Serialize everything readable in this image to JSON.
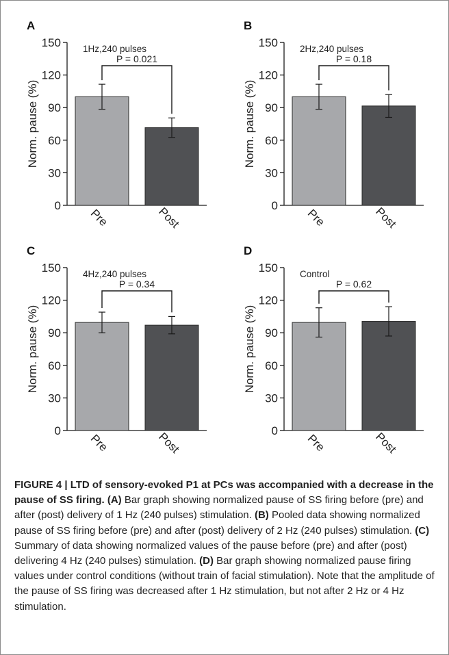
{
  "figure": {
    "caption": {
      "label": "FIGURE 4 | ",
      "title": "LTD of sensory-evoked P1 at PCs was accompanied with a decrease in the pause of SS firing.",
      "parts": [
        {
          "label": " (A)",
          "text": " Bar graph showing normalized pause of SS firing before (pre) and after (post) delivery of 1 Hz (240 pulses) stimulation."
        },
        {
          "label": " (B)",
          "text": " Pooled data showing normalized pause of SS firing before (pre) and after (post) delivery of 2 Hz (240 pulses) stimulation."
        },
        {
          "label": " (C)",
          "text": " Summary of data showing normalized values of the pause before (pre) and after (post) delivering 4 Hz (240 pulses) stimulation."
        },
        {
          "label": " (D)",
          "text": " Bar graph showing normalized pause firing values under control conditions (without train of facial stimulation). Note that the amplitude of the pause of SS firing was decreased after 1 Hz stimulation, but not after 2 Hz or 4 Hz stimulation."
        }
      ]
    },
    "colors": {
      "pre": "#a7a8ab",
      "post": "#505154",
      "axis": "#1a1a1a",
      "text": "#222222"
    }
  },
  "chart_data": [
    {
      "panel": "A",
      "type": "bar",
      "annotation": "1Hz,240 pulses",
      "p_label": "P = 0.021",
      "categories": [
        "Pre",
        "Post"
      ],
      "values": [
        100,
        71.5
      ],
      "errors": [
        11.5,
        9
      ],
      "ylabel": "Norm. pause  (%)",
      "ylim": [
        0,
        150
      ],
      "yticks": [
        0,
        30,
        60,
        90,
        120,
        150
      ]
    },
    {
      "panel": "B",
      "type": "bar",
      "annotation": "2Hz,240 pulses",
      "p_label": "P = 0.18",
      "categories": [
        "Pre",
        "Post"
      ],
      "values": [
        100,
        91.5
      ],
      "errors": [
        11.5,
        10.5
      ],
      "ylabel": "Norm. pause  (%)",
      "ylim": [
        0,
        150
      ],
      "yticks": [
        0,
        30,
        60,
        90,
        120,
        150
      ]
    },
    {
      "panel": "C",
      "type": "bar",
      "annotation": "4Hz,240 pulses",
      "p_label": "P = 0.34",
      "categories": [
        "Pre",
        "Post"
      ],
      "values": [
        99.5,
        97
      ],
      "errors": [
        9.5,
        8
      ],
      "ylabel": "Norm. pause  (%)",
      "ylim": [
        0,
        150
      ],
      "yticks": [
        0,
        30,
        60,
        90,
        120,
        150
      ]
    },
    {
      "panel": "D",
      "type": "bar",
      "annotation": "Control",
      "p_label": "P = 0.62",
      "categories": [
        "Pre",
        "Post"
      ],
      "values": [
        99.5,
        100.5
      ],
      "errors": [
        13.5,
        13.5
      ],
      "ylabel": "Norm. pause  (%)",
      "ylim": [
        0,
        150
      ],
      "yticks": [
        0,
        30,
        60,
        90,
        120,
        150
      ]
    }
  ]
}
